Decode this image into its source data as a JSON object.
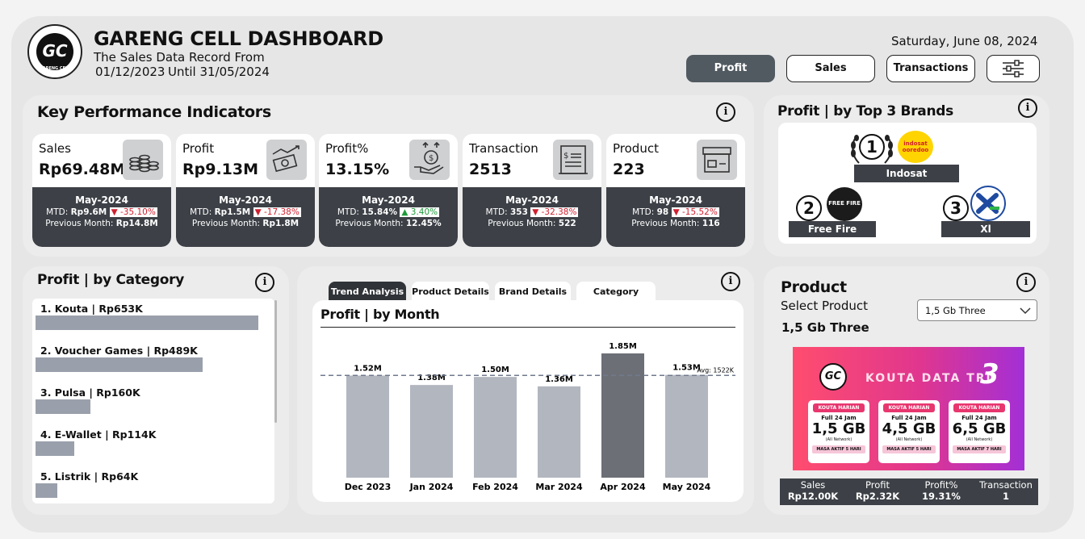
{
  "header": {
    "logo_text": "GC",
    "logo_sub": "GARENG CELL",
    "title": "GARENG CELL DASHBOARD",
    "subtitle": "The Sales Data Record From",
    "date_range_from": "01/12/2023",
    "date_range_until": "Until 31/05/2024",
    "report_date": "Saturday, June 08, 2024"
  },
  "nav": {
    "profit_label": "Profit",
    "sales_label": "Sales",
    "transactions_label": "Transactions",
    "active": "Profit",
    "filter_icon": "sliders-icon"
  },
  "kpi": {
    "title": "Key Performance Indicators",
    "cards": [
      {
        "label": "Sales",
        "value": "Rp69.48M",
        "month": "May-2024",
        "mtd_prefix": "MTD: ",
        "mtd": "Rp9.6M",
        "change": "▼ -35.10%",
        "trend": "down",
        "prev_prefix": "Previous Month: ",
        "prev": "Rp14.8M",
        "icon": "coins-icon"
      },
      {
        "label": "Profit",
        "value": "Rp9.13M",
        "month": "May-2024",
        "mtd_prefix": "MTD: ",
        "mtd": "Rp1.5M",
        "change": "▼ -17.38%",
        "trend": "down",
        "prev_prefix": "Previous Month: ",
        "prev": "Rp1.8M",
        "icon": "money-chart-icon"
      },
      {
        "label": "Profit%",
        "value": "13.15%",
        "month": "May-2024",
        "mtd_prefix": "MTD: ",
        "mtd": "15.84%",
        "change": "▲ 3.40%",
        "trend": "up",
        "prev_prefix": "Previous Month: ",
        "prev": "12.45%",
        "icon": "hand-dollar-icon"
      },
      {
        "label": "Transaction",
        "value": "2513",
        "month": "May-2024",
        "mtd_prefix": "MTD: ",
        "mtd": "353",
        "change": "▼ -32.38%",
        "trend": "down",
        "prev_prefix": "Previous Month: ",
        "prev": "522",
        "icon": "receipt-icon"
      },
      {
        "label": "Product",
        "value": "223",
        "month": "May-2024",
        "mtd_prefix": "MTD: ",
        "mtd": "98",
        "change": "▼ -15.52%",
        "trend": "down",
        "prev_prefix": "Previous Month: ",
        "prev": "116",
        "icon": "box-icon"
      }
    ]
  },
  "brands": {
    "title": "Profit | by Top 3 Brands",
    "items": [
      {
        "rank": "1",
        "name": "Indosat",
        "logo_text": "indosat ooredoo"
      },
      {
        "rank": "2",
        "name": "Free Fire",
        "logo_text": "FREE FIRE"
      },
      {
        "rank": "3",
        "name": "Xl",
        "logo_text": "XL"
      }
    ]
  },
  "category": {
    "title": "Profit | by Category",
    "items": [
      {
        "label": "1. Kouta | Rp653K",
        "value": 653
      },
      {
        "label": "2. Voucher Games | Rp489K",
        "value": 489
      },
      {
        "label": "3. Pulsa | Rp160K",
        "value": 160
      },
      {
        "label": "4. E-Wallet | Rp114K",
        "value": 114
      },
      {
        "label": "5. Listrik | Rp64K",
        "value": 64
      }
    ]
  },
  "tabs": [
    {
      "label": "Trend Analysis",
      "active": true
    },
    {
      "label": "Product Details",
      "active": false
    },
    {
      "label": "Brand Details",
      "active": false
    },
    {
      "label": "Category Details",
      "active": false
    }
  ],
  "chart_data": {
    "type": "bar",
    "title": "Profit | by Month",
    "categories": [
      "Dec 2023",
      "Jan 2024",
      "Feb 2024",
      "Mar 2024",
      "Apr 2024",
      "May 2024"
    ],
    "values": [
      1.52,
      1.38,
      1.5,
      1.36,
      1.85,
      1.53
    ],
    "value_labels": [
      "1.52M",
      "1.38M",
      "1.50M",
      "1.36M",
      "1.85M",
      "1.53M"
    ],
    "unit": "M",
    "highlight_index": 4,
    "average": 1.522,
    "average_label": "Avg: 1522K",
    "ylim": [
      0,
      1.85
    ],
    "colors": {
      "bar": "#b2b6bf",
      "highlight": "#6c6f76",
      "avg_line": "#707a8c"
    }
  },
  "product": {
    "title": "Product",
    "select_label": "Select Product",
    "selected": "1,5 Gb Three",
    "selected_title": "1,5 Gb Three",
    "banner": {
      "heading": "KOUTA DATA TRI",
      "brand_mark": "3",
      "packages": [
        {
          "tag": "KOUTA HARIAN",
          "duration": "Full 24 Jam",
          "size": "1,5 GB",
          "network": "(All Network)",
          "active": "MASA AKTIF 5 HARI"
        },
        {
          "tag": "KOUTA HARIAN",
          "duration": "Full 24 Jam",
          "size": "4,5 GB",
          "network": "(All Network)",
          "active": "MASA AKTIF 5 HARI"
        },
        {
          "tag": "KOUTA HARIAN",
          "duration": "Full 24 Jam",
          "size": "6,5 GB",
          "network": "(All Network)",
          "active": "MASA AKTIF 7 HARI"
        }
      ]
    },
    "stats": [
      {
        "key": "Sales",
        "value": "Rp12.00K"
      },
      {
        "key": "Profit",
        "value": "Rp2.32K"
      },
      {
        "key": "Profit%",
        "value": "19.31%"
      },
      {
        "key": "Transaction",
        "value": "1"
      }
    ]
  }
}
